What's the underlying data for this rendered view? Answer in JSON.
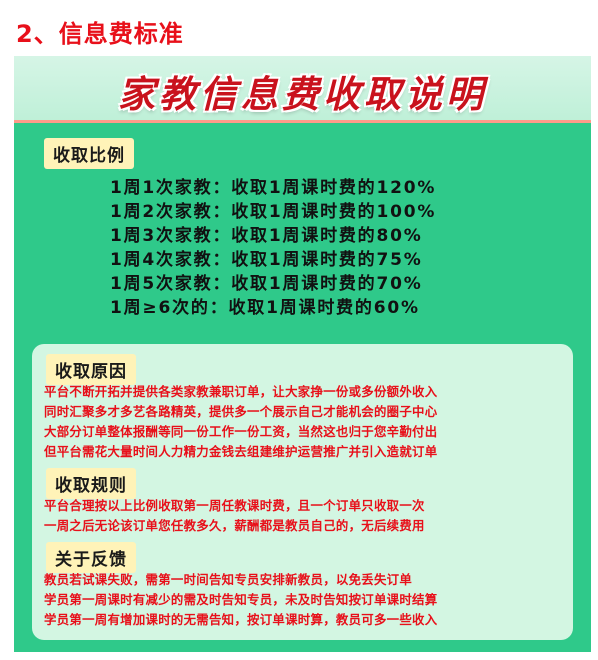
{
  "heading": "2、信息费标准",
  "banner_title": "家教信息费收取说明",
  "ratio_section": {
    "label": "收取比例",
    "items": [
      "1周1次家教：收取1周课时费的120%",
      "1周2次家教：收取1周课时费的100%",
      "1周3次家教：收取1周课时费的80%",
      "1周4次家教：收取1周课时费的75%",
      "1周5次家教：收取1周课时费的70%",
      "1周≥6次的：收取1周课时费的60%"
    ]
  },
  "reason_section": {
    "label": "收取原因",
    "lines": [
      "平台不断开拓并提供各类家教兼职订单，让大家挣一份或多份额外收入",
      "同时汇聚多才多艺各路精英，提供多一个展示自己才能机会的圈子中心",
      "大部分订单整体报酬等同一份工作一份工资，当然这也归于您辛勤付出",
      "但平台需花大量时间人力精力金钱去组建维护运营推广并引入造就订单"
    ]
  },
  "rules_section": {
    "label": "收取规则",
    "lines": [
      "平台合理按以上比例收取第一周任教课时费，且一个订单只收取一次",
      "一周之后无论该订单您任教多久，薪酬都是教员自己的，无后续费用"
    ]
  },
  "feedback_section": {
    "label": "关于反馈",
    "lines": [
      "教员若试课失败，需第一时间告知专员安排新教员，以免丢失订单",
      "学员第一周课时有减少的需及时告知专员，未及时告知按订单课时结算",
      "学员第一周有增加课时的无需告知，按订单课时算，教员可多一些收入"
    ]
  }
}
